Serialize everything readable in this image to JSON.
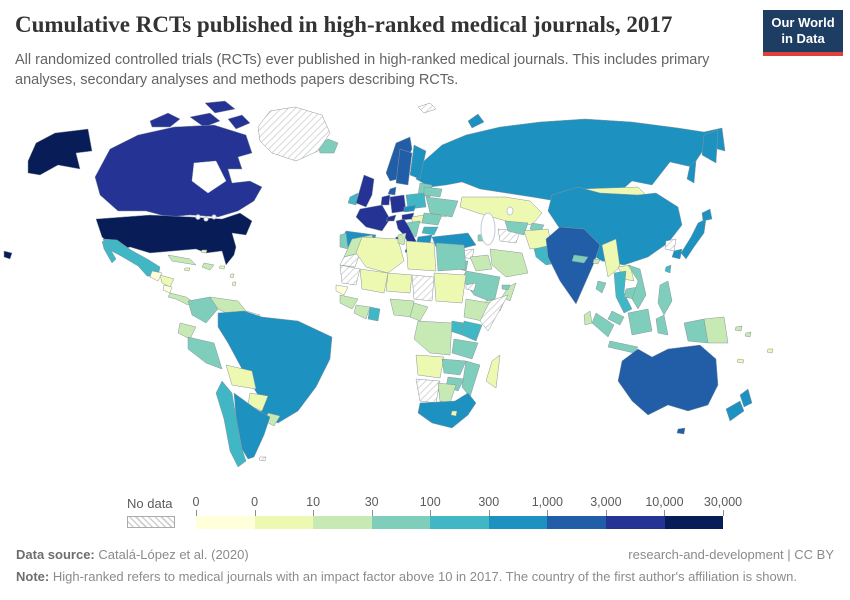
{
  "header": {
    "title": "Cumulative RCTs published in high-ranked medical journals, 2017",
    "subtitle": "All randomized controlled trials (RCTs) ever published in high-ranked medical journals. This includes primary analyses, secondary analyses and methods papers describing RCTs.",
    "logo": {
      "line1": "Our World",
      "line2": "in Data",
      "bg_color": "#1d3d63",
      "accent_color": "#e0403a"
    }
  },
  "legend": {
    "no_data_label": "No data",
    "ticks": [
      "0",
      "0",
      "10",
      "30",
      "100",
      "300",
      "1,000",
      "3,000",
      "10,000",
      "30,000"
    ],
    "colors": [
      "#ffffd9",
      "#edf8b1",
      "#c7e9b4",
      "#7fcdbb",
      "#41b6c4",
      "#1d91c0",
      "#225ea8",
      "#253494",
      "#081d58"
    ]
  },
  "footer": {
    "source_label": "Data source:",
    "source_text": "Catalá-López et al. (2020)",
    "right_text": "research-and-development | CC BY",
    "note_label": "Note:",
    "note_text": "High-ranked refers to medical journals with an impact factor above 10 in 2017. The country of the first author's affiliation is shown."
  },
  "chart_data": {
    "type": "choropleth_map",
    "title": "Cumulative RCTs published in high-ranked medical journals, 2017",
    "year": 2017,
    "legend_buckets": [
      "0",
      "0-10",
      "10-30",
      "30-100",
      "100-300",
      "300-1,000",
      "1,000-3,000",
      "3,000-10,000",
      "10,000-30,000"
    ],
    "legend_colors": [
      "#ffffd9",
      "#edf8b1",
      "#c7e9b4",
      "#7fcdbb",
      "#41b6c4",
      "#1d91c0",
      "#225ea8",
      "#253494",
      "#081d58"
    ],
    "no_data_countries": [
      "Greenland",
      "Svalbard",
      "Western Sahara",
      "Mauritania",
      "Chad",
      "Somalia",
      "Eritrea",
      "Namibia",
      "Guyana",
      "Suriname",
      "North Korea",
      "Turkmenistan",
      "Syria",
      "Falkland Islands"
    ],
    "countries": [
      {
        "name": "United States",
        "bucket": "10,000-30,000"
      },
      {
        "name": "Canada",
        "bucket": "3,000-10,000"
      },
      {
        "name": "United Kingdom",
        "bucket": "3,000-10,000"
      },
      {
        "name": "France",
        "bucket": "3,000-10,000"
      },
      {
        "name": "Germany",
        "bucket": "3,000-10,000"
      },
      {
        "name": "Italy",
        "bucket": "3,000-10,000"
      },
      {
        "name": "Netherlands/Belgium",
        "bucket": "3,000-10,000"
      },
      {
        "name": "Switzerland",
        "bucket": "3,000-10,000"
      },
      {
        "name": "Austria",
        "bucket": "3,000-10,000"
      },
      {
        "name": "Australia",
        "bucket": "1,000-3,000"
      },
      {
        "name": "Sweden",
        "bucket": "1,000-3,000"
      },
      {
        "name": "Norway",
        "bucket": "1,000-3,000"
      },
      {
        "name": "Denmark",
        "bucket": "1,000-3,000"
      },
      {
        "name": "India",
        "bucket": "1,000-3,000"
      },
      {
        "name": "China",
        "bucket": "300-1,000"
      },
      {
        "name": "Russia",
        "bucket": "300-1,000"
      },
      {
        "name": "Japan",
        "bucket": "300-1,000"
      },
      {
        "name": "South Korea",
        "bucket": "300-1,000"
      },
      {
        "name": "Spain",
        "bucket": "300-1,000"
      },
      {
        "name": "Finland",
        "bucket": "300-1,000"
      },
      {
        "name": "Greece",
        "bucket": "300-1,000"
      },
      {
        "name": "Czechia",
        "bucket": "300-1,000"
      },
      {
        "name": "Turkey",
        "bucket": "300-1,000"
      },
      {
        "name": "Brazil",
        "bucket": "300-1,000"
      },
      {
        "name": "Argentina",
        "bucket": "300-1,000"
      },
      {
        "name": "South Africa",
        "bucket": "300-1,000"
      },
      {
        "name": "New Zealand",
        "bucket": "300-1,000"
      },
      {
        "name": "Mexico",
        "bucket": "100-300"
      },
      {
        "name": "Chile",
        "bucket": "100-300"
      },
      {
        "name": "Poland",
        "bucket": "100-300"
      },
      {
        "name": "Ireland",
        "bucket": "100-300"
      },
      {
        "name": "Bulgaria",
        "bucket": "100-300"
      },
      {
        "name": "Pakistan",
        "bucket": "100-300"
      },
      {
        "name": "Thailand",
        "bucket": "100-300"
      },
      {
        "name": "Taiwan",
        "bucket": "100-300"
      },
      {
        "name": "Kenya",
        "bucket": "100-300"
      },
      {
        "name": "Uganda",
        "bucket": "100-300"
      },
      {
        "name": "Ghana",
        "bucket": "100-300"
      },
      {
        "name": "Peru",
        "bucket": "30-100"
      },
      {
        "name": "Colombia",
        "bucket": "30-100"
      },
      {
        "name": "Portugal",
        "bucket": "30-100"
      },
      {
        "name": "Iceland",
        "bucket": "30-100"
      },
      {
        "name": "Ukraine",
        "bucket": "30-100"
      },
      {
        "name": "Belarus",
        "bucket": "30-100"
      },
      {
        "name": "Romania",
        "bucket": "30-100"
      },
      {
        "name": "Israel",
        "bucket": "30-100"
      },
      {
        "name": "Saudi Arabia",
        "bucket": "30-100"
      },
      {
        "name": "Egypt",
        "bucket": "30-100"
      },
      {
        "name": "Tanzania",
        "bucket": "30-100"
      },
      {
        "name": "Zambia",
        "bucket": "30-100"
      },
      {
        "name": "Zimbabwe",
        "bucket": "30-100"
      },
      {
        "name": "Mozambique",
        "bucket": "30-100"
      },
      {
        "name": "Vietnam",
        "bucket": "30-100"
      },
      {
        "name": "Cambodia",
        "bucket": "30-100"
      },
      {
        "name": "Malaysia",
        "bucket": "30-100"
      },
      {
        "name": "Indonesia",
        "bucket": "30-100"
      },
      {
        "name": "Philippines",
        "bucket": "30-100"
      },
      {
        "name": "Bangladesh",
        "bucket": "30-100"
      },
      {
        "name": "Nepal",
        "bucket": "30-100"
      },
      {
        "name": "Uzbekistan",
        "bucket": "30-100"
      },
      {
        "name": "Venezuela",
        "bucket": "10-30"
      },
      {
        "name": "Ecuador",
        "bucket": "10-30"
      },
      {
        "name": "Uruguay",
        "bucket": "10-30"
      },
      {
        "name": "Cuba",
        "bucket": "10-30"
      },
      {
        "name": "Morocco",
        "bucket": "10-30"
      },
      {
        "name": "Tunisia",
        "bucket": "10-30"
      },
      {
        "name": "Nigeria",
        "bucket": "10-30"
      },
      {
        "name": "Cameroon",
        "bucket": "10-30"
      },
      {
        "name": "Ethiopia",
        "bucket": "10-30"
      },
      {
        "name": "Democratic Republic of Congo",
        "bucket": "10-30"
      },
      {
        "name": "Botswana",
        "bucket": "10-30"
      },
      {
        "name": "Iran",
        "bucket": "10-30"
      },
      {
        "name": "Iraq",
        "bucket": "10-30"
      },
      {
        "name": "Oman",
        "bucket": "10-30"
      },
      {
        "name": "Sri Lanka",
        "bucket": "10-30"
      },
      {
        "name": "Papua New Guinea",
        "bucket": "10-30"
      },
      {
        "name": "Bolivia",
        "bucket": "0-10"
      },
      {
        "name": "Paraguay",
        "bucket": "0-10"
      },
      {
        "name": "Honduras",
        "bucket": "0-10"
      },
      {
        "name": "Guatemala",
        "bucket": "0"
      },
      {
        "name": "Senegal",
        "bucket": "0"
      },
      {
        "name": "Mongolia",
        "bucket": "0-10"
      },
      {
        "name": "Kazakhstan",
        "bucket": "0-10"
      },
      {
        "name": "Afghanistan",
        "bucket": "0-10"
      },
      {
        "name": "Myanmar",
        "bucket": "0-10"
      },
      {
        "name": "Laos",
        "bucket": "0-10"
      },
      {
        "name": "Yemen",
        "bucket": "0-10"
      },
      {
        "name": "Algeria",
        "bucket": "0-10"
      },
      {
        "name": "Libya",
        "bucket": "0-10"
      },
      {
        "name": "Sudan",
        "bucket": "0-10"
      },
      {
        "name": "Mali",
        "bucket": "0-10"
      },
      {
        "name": "Niger",
        "bucket": "0-10"
      },
      {
        "name": "Angola",
        "bucket": "0-10"
      },
      {
        "name": "Madagascar",
        "bucket": "0-10"
      },
      {
        "name": "Hungary",
        "bucket": "0-10"
      },
      {
        "name": "Fiji",
        "bucket": "0-10"
      }
    ]
  },
  "map": {
    "region_fills": {
      "greenland": "hatch",
      "svalbard": "hatch",
      "wsahara": "hatch",
      "mauritania": "hatch",
      "chad": "hatch",
      "somalia": "hatch",
      "eritrea": "hatch",
      "namibia": "hatch",
      "guyana": "hatch",
      "nkorea": "hatch",
      "turkmenistan": "hatch",
      "syria": "hatch",
      "falkland": "hatch",
      "usa": "#081d58",
      "alaska": "#081d58",
      "hawaii": "#081d58",
      "canada": "#253494",
      "canada-islands": "#253494",
      "uk": "#253494",
      "france": "#253494",
      "germany": "#253494",
      "benelux": "#253494",
      "switzerland": "#253494",
      "italy": "#253494",
      "austria": "#253494",
      "sardinia": "#253494",
      "sicily": "#253494",
      "australia": "#225ea8",
      "tasmania": "#225ea8",
      "norway": "#225ea8",
      "sweden": "#225ea8",
      "denmark": "#225ea8",
      "india": "#225ea8",
      "russia": "#1d91c0",
      "china": "#1d91c0",
      "japan": "#1d91c0",
      "skorea": "#1d91c0",
      "brazil": "#1d91c0",
      "argentina": "#1d91c0",
      "southafrica": "#1d91c0",
      "spain": "#1d91c0",
      "greece": "#1d91c0",
      "finland": "#1d91c0",
      "newzealand": "#1d91c0",
      "turkey": "#1d91c0",
      "czechia": "#1d91c0",
      "mexico": "#41b6c4",
      "chile": "#41b6c4",
      "poland": "#41b6c4",
      "thailand": "#41b6c4",
      "kenya": "#41b6c4",
      "uganda": "#41b6c4",
      "ghana": "#41b6c4",
      "ireland": "#41b6c4",
      "pakistan": "#41b6c4",
      "taiwan": "#41b6c4",
      "bulgaria": "#41b6c4",
      "peru": "#7fcdbb",
      "colombia": "#7fcdbb",
      "tanzania": "#7fcdbb",
      "saudiarabia": "#7fcdbb",
      "egypt": "#7fcdbb",
      "vietnam": "#7fcdbb",
      "cambodia": "#7fcdbb",
      "indonesia": "#7fcdbb",
      "malaysia": "#7fcdbb",
      "philippines": "#7fcdbb",
      "portugal": "#7fcdbb",
      "iceland": "#7fcdbb",
      "ukraine": "#7fcdbb",
      "belarus": "#7fcdbb",
      "baltics": "#7fcdbb",
      "romania": "#7fcdbb",
      "balkans": "#7fcdbb",
      "israel": "#7fcdbb",
      "uzbekistan": "#7fcdbb",
      "kyrgyzstan": "#7fcdbb",
      "caucasus": "#7fcdbb",
      "nepal": "#7fcdbb",
      "bangladesh": "#7fcdbb",
      "zambia": "#7fcdbb",
      "zimbabwe": "#7fcdbb",
      "mozambique": "#7fcdbb",
      "uae": "#7fcdbb",
      "venezuela": "#c7e9b4",
      "ecuador": "#c7e9b4",
      "cuba": "#c7e9b4",
      "hispaniola": "#c7e9b4",
      "drcongo": "#c7e9b4",
      "botswana": "#c7e9b4",
      "ethiopia": "#c7e9b4",
      "nigeria": "#c7e9b4",
      "cameroon": "#c7e9b4",
      "ivorycoast": "#c7e9b4",
      "tunisia": "#c7e9b4",
      "morocco": "#c7e9b4",
      "iran": "#c7e9b4",
      "iraq": "#c7e9b4",
      "oman": "#c7e9b4",
      "srilanka": "#c7e9b4",
      "png": "#c7e9b4",
      "guinea": "#c7e9b4",
      "panama": "#c7e9b4",
      "uruguay": "#c7e9b4",
      "solomon": "#c7e9b4",
      "bhutan": "#c7e9b4",
      "bolivia": "#edf8b1",
      "paraguay": "#edf8b1",
      "honduras": "#edf8b1",
      "mongolia": "#edf8b1",
      "kazakhstan": "#edf8b1",
      "myanmar": "#edf8b1",
      "laos": "#edf8b1",
      "afghanistan": "#edf8b1",
      "yemen": "#edf8b1",
      "angola": "#edf8b1",
      "madagascar": "#edf8b1",
      "mali": "#edf8b1",
      "niger": "#edf8b1",
      "algeria": "#edf8b1",
      "libya": "#edf8b1",
      "sudan": "#edf8b1",
      "hungary": "#edf8b1",
      "moldova": "#edf8b1",
      "fiji": "#edf8b1",
      "newcaledonia": "#edf8b1",
      "lesotho": "#edf8b1",
      "jamaica": "#edf8b1",
      "antilles": "#edf8b1",
      "bahamas": "#edf8b1",
      "cyprus": "#edf8b1",
      "puertorico": "#edf8b1",
      "guatemala": "#ffffd9",
      "senegal": "#ffffd9",
      "nicaragua": "#ffffd9"
    }
  }
}
